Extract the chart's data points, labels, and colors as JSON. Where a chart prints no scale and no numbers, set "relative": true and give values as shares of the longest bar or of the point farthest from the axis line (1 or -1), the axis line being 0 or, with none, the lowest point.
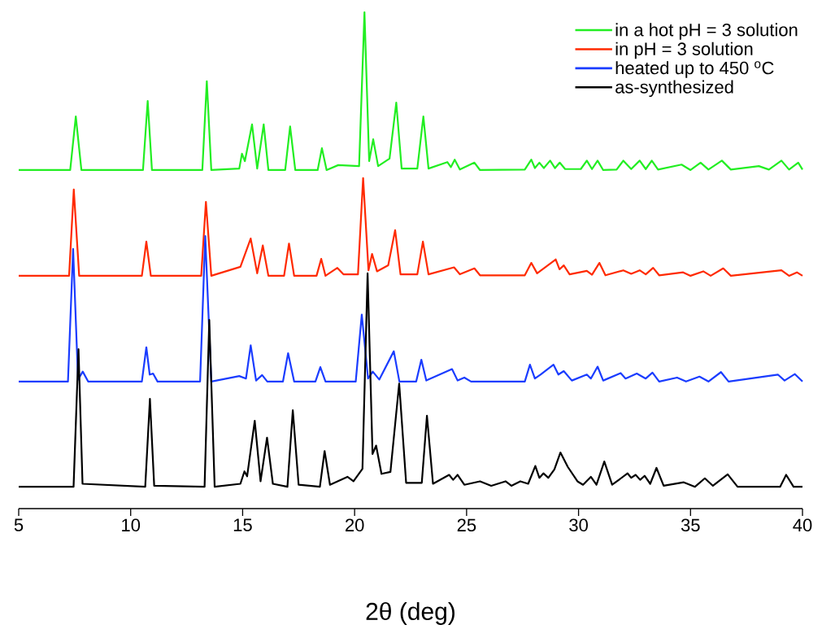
{
  "chart_data": {
    "type": "line",
    "relative": true,
    "xlabel": "2θ (deg)",
    "xlim": [
      5,
      40
    ],
    "xticks": [
      5,
      10,
      15,
      20,
      25,
      30,
      35,
      40
    ],
    "legend": "top right",
    "series": [
      {
        "name": "in a hot pH = 3 solution",
        "color": "#22ee22",
        "x": [
          5,
          7.3,
          7.55,
          7.8,
          10.55,
          10.76,
          10.95,
          13.2,
          13.4,
          13.6,
          14.85,
          14.97,
          15.1,
          15.42,
          15.65,
          15.94,
          16.15,
          16.9,
          17.12,
          17.35,
          18.35,
          18.54,
          18.75,
          19.27,
          20.2,
          20.44,
          20.65,
          20.83,
          21.05,
          21.56,
          21.86,
          22.1,
          22.8,
          23.07,
          23.3,
          24.14,
          24.3,
          24.47,
          24.7,
          25.35,
          25.6,
          27.6,
          27.89,
          28.05,
          28.25,
          28.45,
          28.73,
          28.95,
          29.16,
          29.4,
          30.1,
          30.37,
          30.6,
          30.85,
          31.1,
          31.7,
          32.0,
          32.35,
          32.73,
          33.0,
          33.27,
          33.55,
          34.6,
          35.0,
          35.45,
          35.8,
          36.4,
          36.8,
          38.05,
          38.5,
          39.06,
          39.4,
          39.81,
          40
        ],
        "values": [
          0.682,
          0.682,
          0.79,
          0.682,
          0.682,
          0.821,
          0.682,
          0.682,
          0.861,
          0.682,
          0.685,
          0.715,
          0.7,
          0.774,
          0.685,
          0.774,
          0.682,
          0.682,
          0.77,
          0.682,
          0.682,
          0.726,
          0.682,
          0.692,
          0.69,
          1.0,
          0.7,
          0.744,
          0.69,
          0.705,
          0.818,
          0.685,
          0.685,
          0.79,
          0.685,
          0.698,
          0.688,
          0.703,
          0.683,
          0.697,
          0.682,
          0.683,
          0.703,
          0.686,
          0.697,
          0.686,
          0.701,
          0.686,
          0.697,
          0.684,
          0.684,
          0.701,
          0.684,
          0.701,
          0.682,
          0.683,
          0.701,
          0.684,
          0.701,
          0.684,
          0.701,
          0.683,
          0.693,
          0.682,
          0.697,
          0.683,
          0.701,
          0.683,
          0.69,
          0.683,
          0.701,
          0.683,
          0.697,
          0.683
        ]
      },
      {
        "name": "in pH = 3 solution",
        "color": "#ff2a00",
        "x": [
          5,
          7.25,
          7.46,
          7.7,
          10.5,
          10.7,
          10.9,
          13.15,
          13.36,
          13.6,
          14.9,
          15.36,
          15.65,
          15.9,
          16.15,
          16.85,
          17.07,
          17.3,
          18.3,
          18.51,
          18.7,
          19.23,
          19.5,
          20.15,
          20.38,
          20.62,
          20.78,
          21.0,
          21.5,
          21.81,
          22.05,
          22.8,
          23.05,
          23.3,
          24.44,
          24.7,
          25.35,
          25.6,
          27.6,
          27.89,
          28.15,
          28.98,
          29.15,
          29.34,
          29.6,
          30.37,
          30.6,
          30.93,
          31.2,
          32.0,
          32.35,
          32.73,
          33.0,
          33.33,
          33.6,
          34.67,
          35.0,
          35.57,
          35.9,
          36.46,
          36.8,
          39.06,
          39.4,
          39.75,
          40
        ],
        "values": [
          0.469,
          0.469,
          0.643,
          0.469,
          0.469,
          0.538,
          0.469,
          0.469,
          0.618,
          0.469,
          0.487,
          0.544,
          0.474,
          0.53,
          0.469,
          0.469,
          0.534,
          0.469,
          0.469,
          0.503,
          0.469,
          0.485,
          0.472,
          0.472,
          0.666,
          0.48,
          0.513,
          0.478,
          0.49,
          0.561,
          0.472,
          0.472,
          0.538,
          0.472,
          0.486,
          0.472,
          0.484,
          0.47,
          0.47,
          0.495,
          0.474,
          0.502,
          0.482,
          0.49,
          0.472,
          0.479,
          0.471,
          0.495,
          0.47,
          0.48,
          0.473,
          0.48,
          0.472,
          0.485,
          0.47,
          0.476,
          0.469,
          0.478,
          0.469,
          0.484,
          0.469,
          0.48,
          0.469,
          0.476,
          0.469
        ]
      },
      {
        "name": "heated up to 450 $^{o}$C",
        "color": "#1a3cff",
        "x": [
          5,
          7.2,
          7.43,
          7.65,
          7.86,
          8.1,
          10.5,
          10.7,
          10.85,
          11.0,
          11.2,
          13.1,
          13.33,
          13.6,
          14.85,
          15.15,
          15.36,
          15.6,
          15.87,
          16.1,
          16.8,
          17.03,
          17.3,
          18.25,
          18.47,
          18.7,
          20.05,
          20.32,
          20.6,
          20.81,
          21.1,
          21.75,
          22.0,
          22.75,
          22.98,
          23.2,
          24.35,
          24.6,
          24.9,
          25.2,
          27.6,
          27.83,
          28.05,
          28.3,
          28.88,
          29.1,
          29.34,
          29.7,
          30.37,
          30.55,
          30.85,
          31.1,
          31.88,
          32.1,
          32.6,
          33.0,
          33.3,
          33.6,
          34.4,
          34.8,
          35.4,
          35.8,
          36.36,
          36.7,
          38.9,
          39.2,
          39.66,
          40
        ],
        "values": [
          0.256,
          0.256,
          0.523,
          0.26,
          0.276,
          0.256,
          0.256,
          0.325,
          0.27,
          0.272,
          0.256,
          0.256,
          0.549,
          0.256,
          0.267,
          0.262,
          0.329,
          0.258,
          0.269,
          0.256,
          0.256,
          0.313,
          0.256,
          0.256,
          0.285,
          0.256,
          0.256,
          0.391,
          0.262,
          0.276,
          0.26,
          0.317,
          0.256,
          0.256,
          0.3,
          0.258,
          0.281,
          0.258,
          0.264,
          0.256,
          0.256,
          0.29,
          0.262,
          0.27,
          0.29,
          0.27,
          0.277,
          0.258,
          0.27,
          0.262,
          0.286,
          0.258,
          0.273,
          0.262,
          0.272,
          0.262,
          0.274,
          0.256,
          0.264,
          0.256,
          0.266,
          0.256,
          0.275,
          0.256,
          0.27,
          0.258,
          0.271,
          0.256
        ]
      },
      {
        "name": "as-synthesized",
        "color": "#000000",
        "x": [
          5,
          7.45,
          7.67,
          7.85,
          10.65,
          10.86,
          11.05,
          13.3,
          13.51,
          13.75,
          14.9,
          15.08,
          15.2,
          15.54,
          15.8,
          16.09,
          16.35,
          17.0,
          17.24,
          17.5,
          18.45,
          18.66,
          18.9,
          19.68,
          19.95,
          20.35,
          20.58,
          20.8,
          20.96,
          21.2,
          21.6,
          21.99,
          22.3,
          23.0,
          23.23,
          23.5,
          24.22,
          24.4,
          24.6,
          24.9,
          25.6,
          26.1,
          26.74,
          27.0,
          27.4,
          27.75,
          28.07,
          28.25,
          28.43,
          28.65,
          28.92,
          29.19,
          29.52,
          29.95,
          30.2,
          30.55,
          30.8,
          31.15,
          31.5,
          32.19,
          32.35,
          32.55,
          32.75,
          32.95,
          33.2,
          33.48,
          33.8,
          34.7,
          35.2,
          35.64,
          36.0,
          36.66,
          37.1,
          39.0,
          39.27,
          39.6,
          40
        ],
        "values": [
          0.044,
          0.044,
          0.321,
          0.05,
          0.044,
          0.221,
          0.046,
          0.044,
          0.38,
          0.044,
          0.05,
          0.075,
          0.065,
          0.177,
          0.055,
          0.143,
          0.05,
          0.044,
          0.198,
          0.048,
          0.044,
          0.116,
          0.048,
          0.064,
          0.055,
          0.08,
          0.474,
          0.11,
          0.127,
          0.07,
          0.074,
          0.252,
          0.052,
          0.052,
          0.187,
          0.05,
          0.068,
          0.058,
          0.068,
          0.048,
          0.055,
          0.046,
          0.055,
          0.046,
          0.055,
          0.05,
          0.086,
          0.062,
          0.071,
          0.062,
          0.079,
          0.113,
          0.084,
          0.055,
          0.048,
          0.064,
          0.048,
          0.095,
          0.048,
          0.071,
          0.062,
          0.068,
          0.058,
          0.066,
          0.05,
          0.082,
          0.046,
          0.053,
          0.044,
          0.061,
          0.046,
          0.069,
          0.044,
          0.044,
          0.068,
          0.044,
          0.044
        ]
      }
    ]
  }
}
